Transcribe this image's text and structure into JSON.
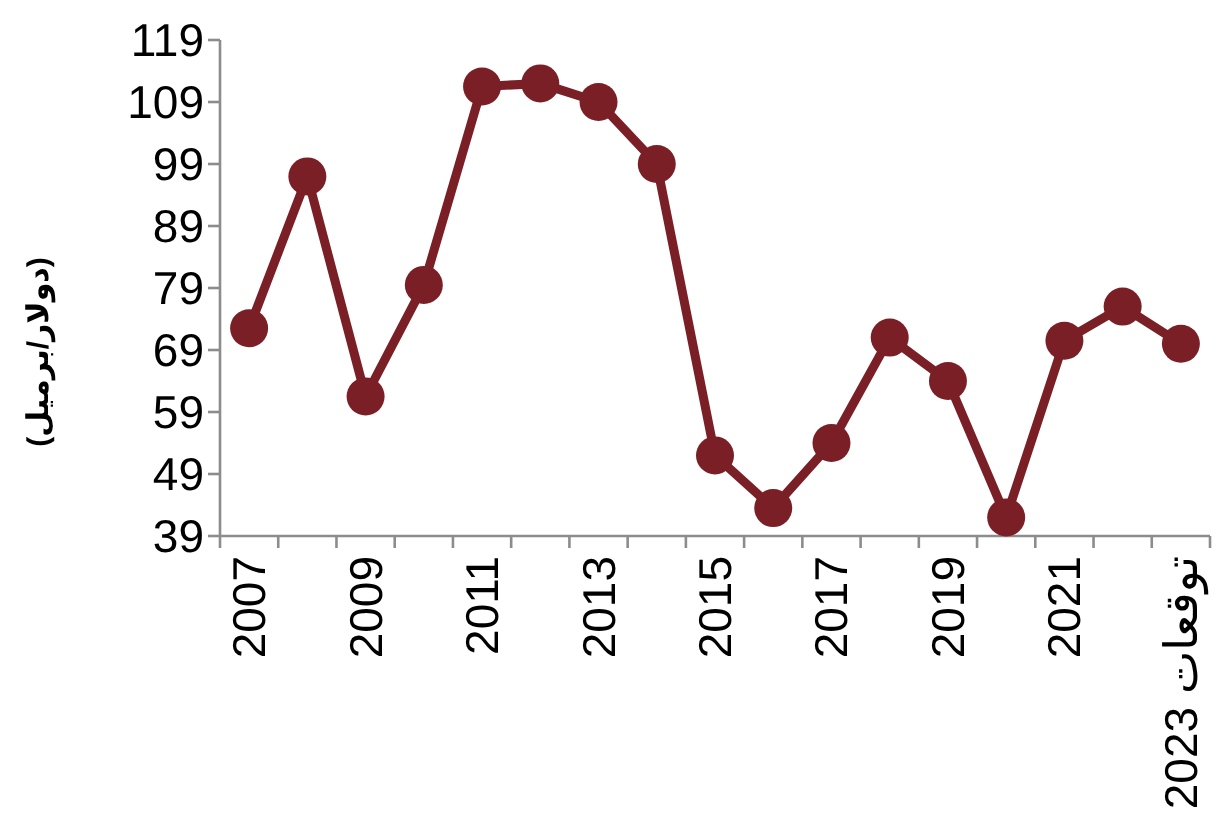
{
  "chart_data": {
    "type": "line",
    "ylabel": "(دولار/برميل)",
    "categories": [
      "2007",
      null,
      "2009",
      null,
      "2011",
      null,
      "2013",
      null,
      "2015",
      null,
      "2017",
      null,
      "2019",
      null,
      "2021",
      null,
      "توقعات 2023"
    ],
    "series": [
      {
        "color": "#7b1f27",
        "values": [
          72.5,
          97,
          61.5,
          79.5,
          111.5,
          112,
          109,
          99,
          52,
          43.5,
          54,
          71,
          64,
          42,
          70.5,
          76,
          70
        ]
      }
    ],
    "ylim": [
      39,
      119
    ],
    "yticks": [
      39,
      49,
      59,
      69,
      79,
      89,
      99,
      109,
      119
    ],
    "grid": false,
    "marker": "circle",
    "line_style": "solid"
  }
}
